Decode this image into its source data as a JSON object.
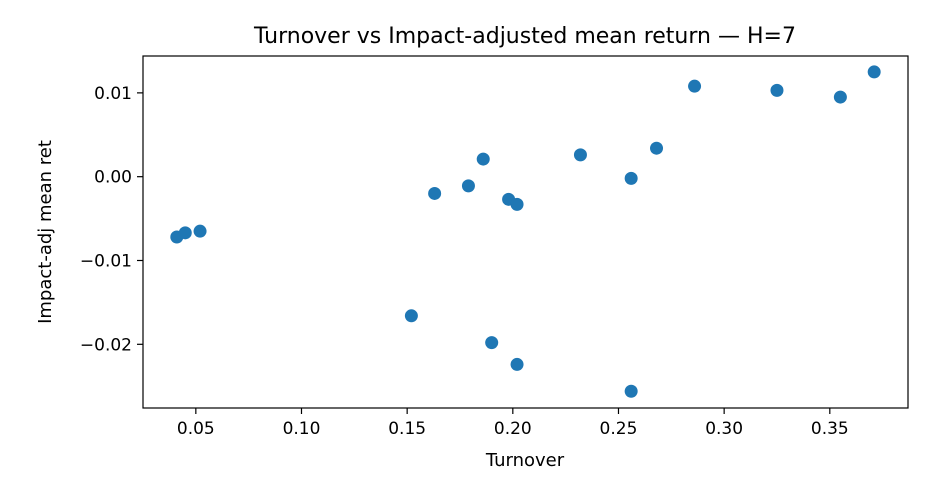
{
  "chart_data": {
    "type": "scatter",
    "title": "Turnover vs Impact-adjusted mean return — H=7",
    "xlabel": "Turnover",
    "ylabel": "Impact-adj mean ret",
    "xlim": [
      0.025,
      0.387
    ],
    "ylim": [
      -0.0276,
      0.0144
    ],
    "xticks": [
      0.05,
      0.1,
      0.15,
      0.2,
      0.25,
      0.3,
      0.35
    ],
    "xtick_labels": [
      "0.05",
      "0.10",
      "0.15",
      "0.20",
      "0.25",
      "0.30",
      "0.35"
    ],
    "yticks": [
      -0.02,
      -0.01,
      0.0,
      0.01
    ],
    "ytick_labels": [
      "−0.02",
      "−0.01",
      "0.00",
      "0.01"
    ],
    "grid": false,
    "marker_color": "#1f77b4",
    "points": [
      {
        "x": 0.041,
        "y": -0.0072
      },
      {
        "x": 0.045,
        "y": -0.0067
      },
      {
        "x": 0.052,
        "y": -0.0065
      },
      {
        "x": 0.152,
        "y": -0.0166
      },
      {
        "x": 0.163,
        "y": -0.002
      },
      {
        "x": 0.179,
        "y": -0.0011
      },
      {
        "x": 0.186,
        "y": 0.0021
      },
      {
        "x": 0.19,
        "y": -0.0198
      },
      {
        "x": 0.198,
        "y": -0.0027
      },
      {
        "x": 0.202,
        "y": -0.0033
      },
      {
        "x": 0.202,
        "y": -0.0224
      },
      {
        "x": 0.232,
        "y": 0.0026
      },
      {
        "x": 0.256,
        "y": -0.0002
      },
      {
        "x": 0.256,
        "y": -0.0256
      },
      {
        "x": 0.268,
        "y": 0.0034
      },
      {
        "x": 0.286,
        "y": 0.0108
      },
      {
        "x": 0.325,
        "y": 0.0103
      },
      {
        "x": 0.355,
        "y": 0.0095
      },
      {
        "x": 0.371,
        "y": 0.0125
      }
    ]
  }
}
